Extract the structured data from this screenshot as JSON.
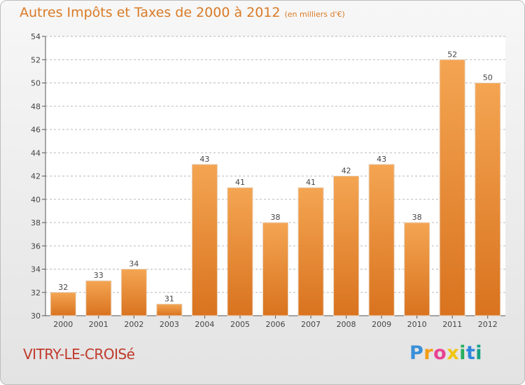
{
  "header": {
    "title": "Autres Impôts et Taxes de 2000 à 2012",
    "unit": "(en milliers d'€)"
  },
  "footer": {
    "commune": "VITRY-LE-CROISé",
    "logo": "Proxiti"
  },
  "colors": {
    "title": "#d97a26",
    "commune": "#c0392b",
    "bar_top": "#f4a552",
    "bar_bottom": "#d9731f"
  },
  "chart_data": {
    "type": "bar",
    "title": "Autres Impôts et Taxes de 2000 à 2012",
    "subtitle": "(en milliers d'€)",
    "categories": [
      "2000",
      "2001",
      "2002",
      "2003",
      "2004",
      "2005",
      "2006",
      "2007",
      "2008",
      "2009",
      "2010",
      "2011",
      "2012"
    ],
    "values": [
      32,
      33,
      34,
      31,
      43,
      41,
      38,
      41,
      42,
      43,
      38,
      52,
      50
    ],
    "ylim": [
      30,
      54
    ],
    "yticks": [
      30,
      32,
      34,
      36,
      38,
      40,
      42,
      44,
      46,
      48,
      50,
      52,
      54
    ],
    "grid": "dashed-horizontal",
    "legend": "none"
  }
}
